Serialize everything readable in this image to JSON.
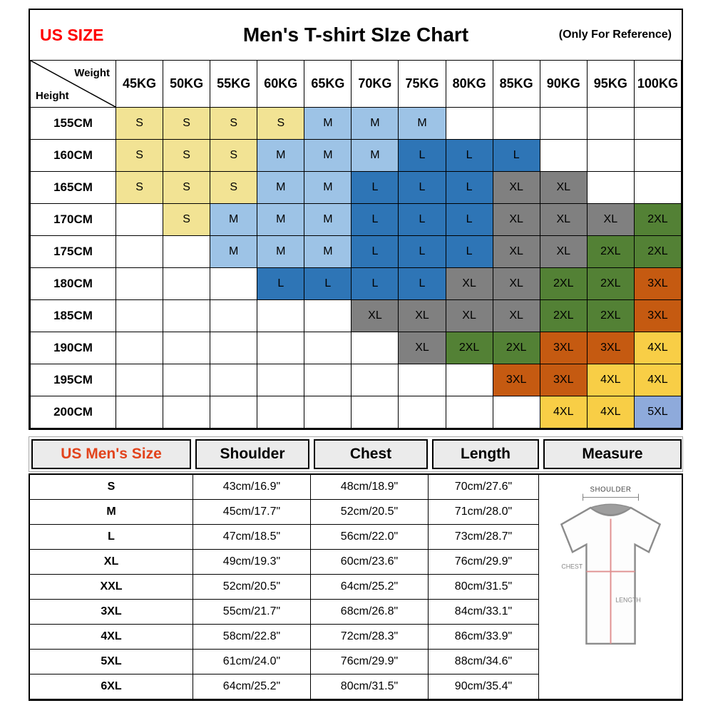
{
  "header": {
    "us_size": "US SIZE",
    "title": "Men's T-shirt SIze Chart",
    "note": "(Only For Reference)"
  },
  "chart_data": [
    {
      "type": "heatmap",
      "title": "Men's T-shirt SIze Chart",
      "corner_top": "Weight",
      "corner_bottom": "Height",
      "columns": [
        "45KG",
        "50KG",
        "55KG",
        "60KG",
        "65KG",
        "70KG",
        "75KG",
        "80KG",
        "85KG",
        "90KG",
        "95KG",
        "100KG"
      ],
      "rows": [
        {
          "height": "155CM",
          "cells": [
            "S",
            "S",
            "S",
            "S",
            "M",
            "M",
            "M",
            "",
            "",
            "",
            "",
            ""
          ]
        },
        {
          "height": "160CM",
          "cells": [
            "S",
            "S",
            "S",
            "M",
            "M",
            "M",
            "L",
            "L",
            "L",
            "",
            "",
            ""
          ]
        },
        {
          "height": "165CM",
          "cells": [
            "S",
            "S",
            "S",
            "M",
            "M",
            "L",
            "L",
            "L",
            "XL",
            "XL",
            "",
            ""
          ]
        },
        {
          "height": "170CM",
          "cells": [
            "",
            "S",
            "M",
            "M",
            "M",
            "L",
            "L",
            "L",
            "XL",
            "XL",
            "XL",
            "2XL"
          ]
        },
        {
          "height": "175CM",
          "cells": [
            "",
            "",
            "M",
            "M",
            "M",
            "L",
            "L",
            "L",
            "XL",
            "XL",
            "2XL",
            "2XL"
          ]
        },
        {
          "height": "180CM",
          "cells": [
            "",
            "",
            "",
            "L",
            "L",
            "L",
            "L",
            "XL",
            "XL",
            "2XL",
            "2XL",
            "3XL"
          ]
        },
        {
          "height": "185CM",
          "cells": [
            "",
            "",
            "",
            "",
            "",
            "XL",
            "XL",
            "XL",
            "XL",
            "2XL",
            "2XL",
            "3XL"
          ]
        },
        {
          "height": "190CM",
          "cells": [
            "",
            "",
            "",
            "",
            "",
            "",
            "XL",
            "2XL",
            "2XL",
            "3XL",
            "3XL",
            "4XL"
          ]
        },
        {
          "height": "195CM",
          "cells": [
            "",
            "",
            "",
            "",
            "",
            "",
            "",
            "",
            "3XL",
            "3XL",
            "4XL",
            "4XL"
          ]
        },
        {
          "height": "200CM",
          "cells": [
            "",
            "",
            "",
            "",
            "",
            "",
            "",
            "",
            "",
            "4XL",
            "4XL",
            "5XL"
          ]
        }
      ],
      "colors": {
        "S": "#f2e394",
        "M": "#9dc3e6",
        "L": "#2e75b6",
        "XL": "#808080",
        "2XL": "#538135",
        "3XL": "#c55a11",
        "4XL": "#f8ce46",
        "5XL": "#8eaadb"
      }
    },
    {
      "type": "table",
      "headers": [
        "US Men's Size",
        "Shoulder",
        "Chest",
        "Length",
        "Measure"
      ],
      "rows": [
        {
          "size": "S",
          "shoulder": "43cm/16.9\"",
          "chest": "48cm/18.9\"",
          "length": "70cm/27.6\""
        },
        {
          "size": "M",
          "shoulder": "45cm/17.7\"",
          "chest": "52cm/20.5\"",
          "length": "71cm/28.0\""
        },
        {
          "size": "L",
          "shoulder": "47cm/18.5\"",
          "chest": "56cm/22.0\"",
          "length": "73cm/28.7\""
        },
        {
          "size": "XL",
          "shoulder": "49cm/19.3\"",
          "chest": "60cm/23.6\"",
          "length": "76cm/29.9\""
        },
        {
          "size": "XXL",
          "shoulder": "52cm/20.5\"",
          "chest": "64cm/25.2\"",
          "length": "80cm/31.5\""
        },
        {
          "size": "3XL",
          "shoulder": "55cm/21.7\"",
          "chest": "68cm/26.8\"",
          "length": "84cm/33.1\""
        },
        {
          "size": "4XL",
          "shoulder": "58cm/22.8\"",
          "chest": "72cm/28.3\"",
          "length": "86cm/33.9\""
        },
        {
          "size": "5XL",
          "shoulder": "61cm/24.0\"",
          "chest": "76cm/29.9\"",
          "length": "88cm/34.6\""
        },
        {
          "size": "6XL",
          "shoulder": "64cm/25.2\"",
          "chest": "80cm/31.5\"",
          "length": "90cm/35.4\""
        }
      ],
      "diagram_labels": {
        "shoulder": "SHOULDER",
        "chest": "CHEST",
        "length": "LENGTH"
      }
    }
  ],
  "accent_colors": {
    "top_red": "#ff0000",
    "table_header_red": "#e2431c"
  }
}
